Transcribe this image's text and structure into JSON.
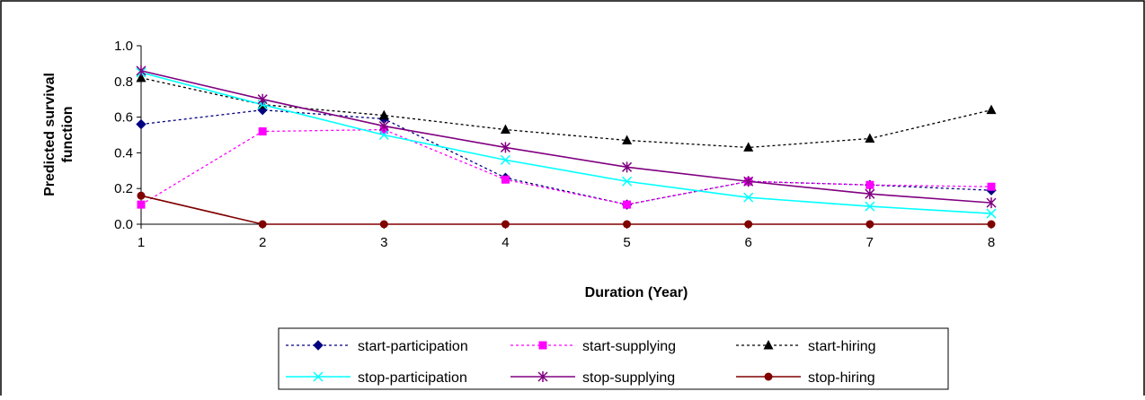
{
  "colors": {
    "start_participation": "#000080",
    "start_supplying": "#FF00FF",
    "start_hiring": "#000000",
    "stop_participation": "#00FFFF",
    "stop_supplying": "#800080",
    "stop_hiring": "#800000"
  },
  "chart_data": {
    "type": "line",
    "title": "",
    "xlabel": "Duration (Year)",
    "ylabel": "Predicted survival function",
    "ylabel_lines": [
      "Predicted survival",
      "function"
    ],
    "x": [
      1,
      2,
      3,
      4,
      5,
      6,
      7,
      8
    ],
    "xlim": [
      1,
      8
    ],
    "ylim": [
      0,
      1
    ],
    "y_ticks": [
      "0.0",
      "0.2",
      "0.4",
      "0.6",
      "0.8",
      "1.0"
    ],
    "x_ticks": [
      "1",
      "2",
      "3",
      "4",
      "5",
      "6",
      "7",
      "8"
    ],
    "grid": false,
    "legend_position": "bottom",
    "series": [
      {
        "name": "start-participation",
        "values": [
          0.56,
          0.64,
          0.59,
          0.26,
          0.11,
          0.24,
          0.22,
          0.19
        ],
        "line": "dotted",
        "marker": "diamond",
        "color_key": "start_participation"
      },
      {
        "name": "start-supplying",
        "values": [
          0.11,
          0.52,
          0.53,
          0.25,
          0.11,
          0.24,
          0.22,
          0.21
        ],
        "line": "dotted",
        "marker": "square",
        "color_key": "start_supplying"
      },
      {
        "name": "start-hiring",
        "values": [
          0.82,
          0.67,
          0.61,
          0.53,
          0.47,
          0.43,
          0.48,
          0.64
        ],
        "line": "dotted",
        "marker": "triangle",
        "color_key": "start_hiring"
      },
      {
        "name": "stop-participation",
        "values": [
          0.85,
          0.67,
          0.5,
          0.36,
          0.24,
          0.15,
          0.1,
          0.06
        ],
        "line": "solid",
        "marker": "x",
        "color_key": "stop_participation"
      },
      {
        "name": "stop-supplying",
        "values": [
          0.86,
          0.7,
          0.55,
          0.43,
          0.32,
          0.24,
          0.17,
          0.12
        ],
        "line": "solid",
        "marker": "star",
        "color_key": "stop_supplying"
      },
      {
        "name": "stop-hiring",
        "values": [
          0.16,
          0.0,
          0.0,
          0.0,
          0.0,
          0.0,
          0.0,
          0.0
        ],
        "line": "solid",
        "marker": "circle",
        "color_key": "stop_hiring"
      }
    ]
  }
}
